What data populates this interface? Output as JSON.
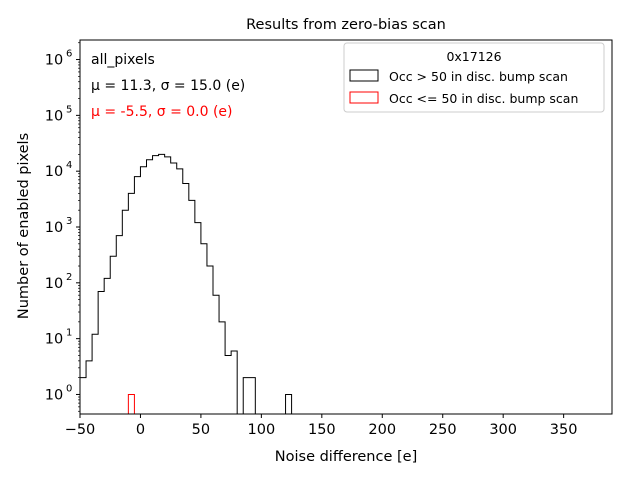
{
  "chart_data": {
    "type": "histogram",
    "title": "Results from zero-bias scan",
    "xlabel": "Noise difference [e]",
    "ylabel": "Number of enabled pixels",
    "xlim": [
      -50,
      390
    ],
    "ylim_log10": [
      -0.35,
      6.35
    ],
    "yscale": "log",
    "bin_width": 5,
    "x_ticks": [
      -50,
      0,
      50,
      100,
      150,
      200,
      250,
      300,
      350
    ],
    "x_tick_labels": [
      "−50",
      "0",
      "50",
      "100",
      "150",
      "200",
      "250",
      "300",
      "350"
    ],
    "y_ticks": [
      {
        "exp": "0",
        "value": 1
      },
      {
        "exp": "1",
        "value": 10
      },
      {
        "exp": "2",
        "value": 100
      },
      {
        "exp": "3",
        "value": 1000
      },
      {
        "exp": "4",
        "value": 10000
      },
      {
        "exp": "5",
        "value": 100000
      },
      {
        "exp": "6",
        "value": 1000000
      }
    ],
    "y_tick_base": "10",
    "series": [
      {
        "name": "Occ > 50 in disc. bump scan",
        "color": "#000000",
        "bin_left_edges": [
          -50,
          -45,
          -40,
          -35,
          -30,
          -25,
          -20,
          -15,
          -10,
          -5,
          0,
          5,
          10,
          15,
          20,
          25,
          30,
          35,
          40,
          45,
          50,
          55,
          60,
          65,
          70,
          75,
          80,
          85,
          90,
          95,
          100,
          105,
          110,
          115,
          120,
          125
        ],
        "counts": [
          2,
          4,
          12,
          70,
          120,
          300,
          700,
          2000,
          4000,
          8000,
          12000,
          16000,
          19000,
          20000,
          18000,
          14000,
          11000,
          6000,
          3000,
          1200,
          500,
          200,
          60,
          20,
          5,
          6,
          0,
          2,
          2,
          0,
          0,
          0,
          0,
          0,
          1,
          0
        ]
      },
      {
        "name": "Occ <= 50 in disc. bump scan",
        "color": "#ff0000",
        "bin_left_edges": [
          -10
        ],
        "counts": [
          1
        ]
      }
    ],
    "legend": {
      "title": "0x17126",
      "location": "upper right"
    },
    "annotations": [
      {
        "name": "label",
        "text": "all_pixels",
        "color": "#000000"
      },
      {
        "name": "stats-black",
        "text": "μ = 11.3, σ = 15.0 (e)",
        "color": "#000000"
      },
      {
        "name": "stats-red",
        "text": "μ = -5.5, σ = 0.0 (e)",
        "color": "#ff0000"
      }
    ]
  }
}
